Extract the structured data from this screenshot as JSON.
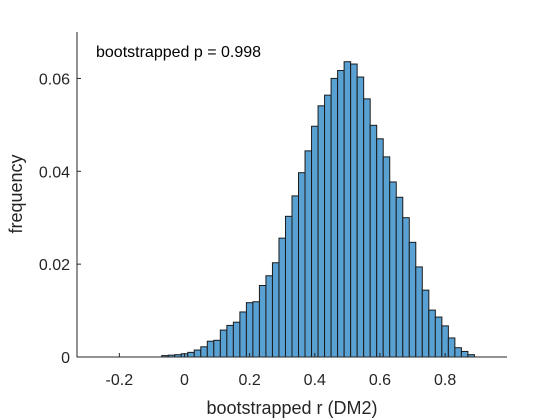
{
  "chart_data": {
    "type": "bar",
    "title": "",
    "annotation": "bootstrapped p = 0.998",
    "xlabel": "bootstrapped r (DM2)",
    "ylabel": "frequency",
    "xlim": [
      -0.33,
      0.99
    ],
    "ylim": [
      0,
      0.07
    ],
    "xticks": [
      -0.2,
      0,
      0.2,
      0.4,
      0.6,
      0.8
    ],
    "xtick_labels": [
      "-0.2",
      "0",
      "0.2",
      "0.4",
      "0.6",
      "0.8"
    ],
    "yticks": [
      0,
      0.02,
      0.04,
      0.06
    ],
    "ytick_labels": [
      "0",
      "0.02",
      "0.04",
      "0.06"
    ],
    "grid": false,
    "bar_color": "#5aa1d3",
    "edge_color": "#1a1a1a",
    "bin_width": 0.02,
    "bin_starts": [
      -0.07,
      -0.05,
      -0.03,
      -0.01,
      0.01,
      0.03,
      0.05,
      0.07,
      0.09,
      0.11,
      0.13,
      0.15,
      0.17,
      0.19,
      0.21,
      0.23,
      0.25,
      0.27,
      0.29,
      0.31,
      0.33,
      0.35,
      0.37,
      0.39,
      0.41,
      0.43,
      0.45,
      0.47,
      0.49,
      0.51,
      0.53,
      0.55,
      0.57,
      0.59,
      0.61,
      0.63,
      0.65,
      0.67,
      0.69,
      0.71,
      0.73,
      0.75,
      0.77,
      0.79,
      0.81,
      0.83,
      0.85,
      0.87
    ],
    "values": [
      0.0003,
      0.0004,
      0.0005,
      0.0007,
      0.001,
      0.0015,
      0.0022,
      0.0034,
      0.0036,
      0.0058,
      0.0068,
      0.0075,
      0.0097,
      0.0117,
      0.0119,
      0.0154,
      0.0175,
      0.0203,
      0.0256,
      0.0303,
      0.0347,
      0.0397,
      0.0444,
      0.0497,
      0.0541,
      0.0564,
      0.06,
      0.0617,
      0.0636,
      0.0631,
      0.0603,
      0.0556,
      0.0499,
      0.047,
      0.0431,
      0.0377,
      0.0344,
      0.03,
      0.0247,
      0.0194,
      0.0144,
      0.0101,
      0.0086,
      0.0067,
      0.0041,
      0.002,
      0.0012,
      0.0005
    ]
  }
}
